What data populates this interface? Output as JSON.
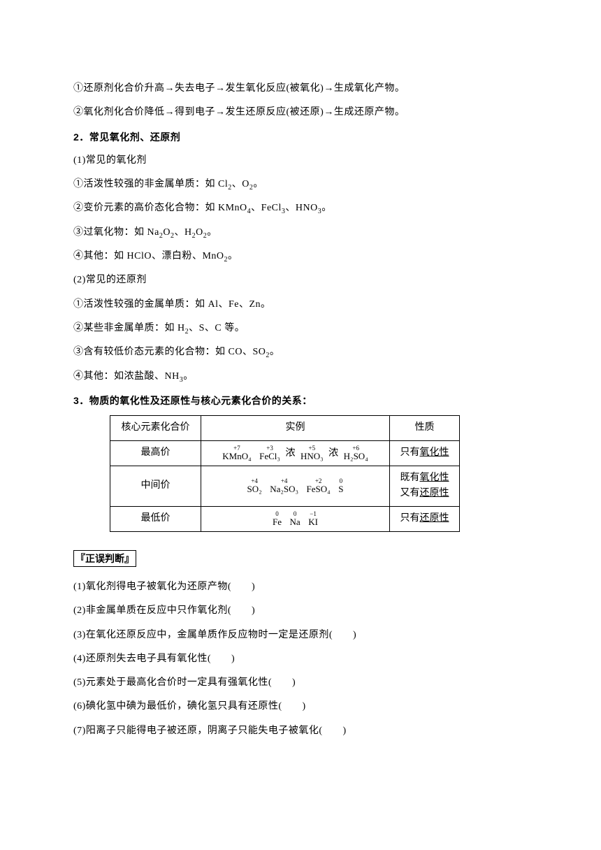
{
  "intro": {
    "l1": "①还原剂化合价升高→失去电子→发生氧化反应(被氧化)→生成氧化产物。",
    "l2": "②氧化剂化合价降低→得到电子→发生还原反应(被还原)→生成还原产物。"
  },
  "s2": {
    "title": "2．常见氧化剂、还原剂",
    "p1": "(1)常见的氧化剂",
    "p1a_pre": "①活泼性较强的非金属单质：如 Cl",
    "p1a_mid": "、O",
    "p1a_end": "。",
    "p1b_pre": "②变价元素的高价态化合物：如 KMnO",
    "p1b_m1": "、FeCl",
    "p1b_m2": "、HNO",
    "p1b_end": "。",
    "p1c_pre": "③过氧化物：如 Na",
    "p1c_m1": "O",
    "p1c_m2": "、H",
    "p1c_m3": "O",
    "p1c_end": "。",
    "p1d_pre": "④其他：如 HClO、漂白粉、MnO",
    "p1d_end": "。",
    "p2": "(2)常见的还原剂",
    "p2a": "①活泼性较强的金属单质：如 Al、Fe、Zn。",
    "p2b_pre": "②某些非金属单质：如 H",
    "p2b_end": "、S、C 等。",
    "p2c_pre": "③含有较低价态元素的化合物：如 CO、SO",
    "p2c_end": "。",
    "p2d_pre": "④其他：如浓盐酸、NH",
    "p2d_end": "。"
  },
  "s3": {
    "title": "3．物质的氧化性及还原性与核心元素化合价的关系：",
    "header": {
      "c0": "核心元素化合价",
      "c1": "实例",
      "c2": "性质"
    },
    "row1": {
      "c0": "最高价",
      "f1_top": "+7",
      "f1_bot": "KMnO₄",
      "f2_top": "+3",
      "f2_bot": "FeCl₃",
      "f3_pre": "浓 ",
      "f3_top": "+5",
      "f3_bot": "HNO₃",
      "f4_pre": "浓 ",
      "f4_top": "+6",
      "f4_bot": "H₂SO₄",
      "c2_pre": "只有",
      "c2_u": "氧化性"
    },
    "row2": {
      "c0": "中间价",
      "f1_top": "+4",
      "f1_bot": "SO₂",
      "f2_top": "+4",
      "f2_bot": "Na₂SO₃",
      "f3_top": "+2",
      "f3_bot": "FeSO₄",
      "f4_top": "0",
      "f4_bot": "S",
      "c2a_pre": "既有",
      "c2a_u": "氧化性",
      "c2b_pre": "又有",
      "c2b_u": "还原性"
    },
    "row3": {
      "c0": "最低价",
      "f1_top": "0",
      "f1_bot": "Fe",
      "f2_top": "0",
      "f2_bot": "Na",
      "f3_top": "−1",
      "f3_bot": "KI",
      "c2_pre": "只有",
      "c2_u": "还原性"
    }
  },
  "judge": {
    "title": "正误判断",
    "q1": "(1)氧化剂得电子被氧化为还原产物(　　)",
    "q2": "(2)非金属单质在反应中只作氧化剂(　　)",
    "q3": "(3)在氧化还原反应中，金属单质作反应物时一定是还原剂(　　)",
    "q4": "(4)还原剂失去电子具有氧化性(　　)",
    "q5": "(5)元素处于最高化合价时一定具有强氧化性(　　)",
    "q6": "(6)碘化氢中碘为最低价，碘化氢只具有还原性(　　)",
    "q7": "(7)阳离子只能得电子被还原，阴离子只能失电子被氧化(　　)"
  },
  "sub": {
    "two": "2",
    "three": "3",
    "four": "4"
  }
}
